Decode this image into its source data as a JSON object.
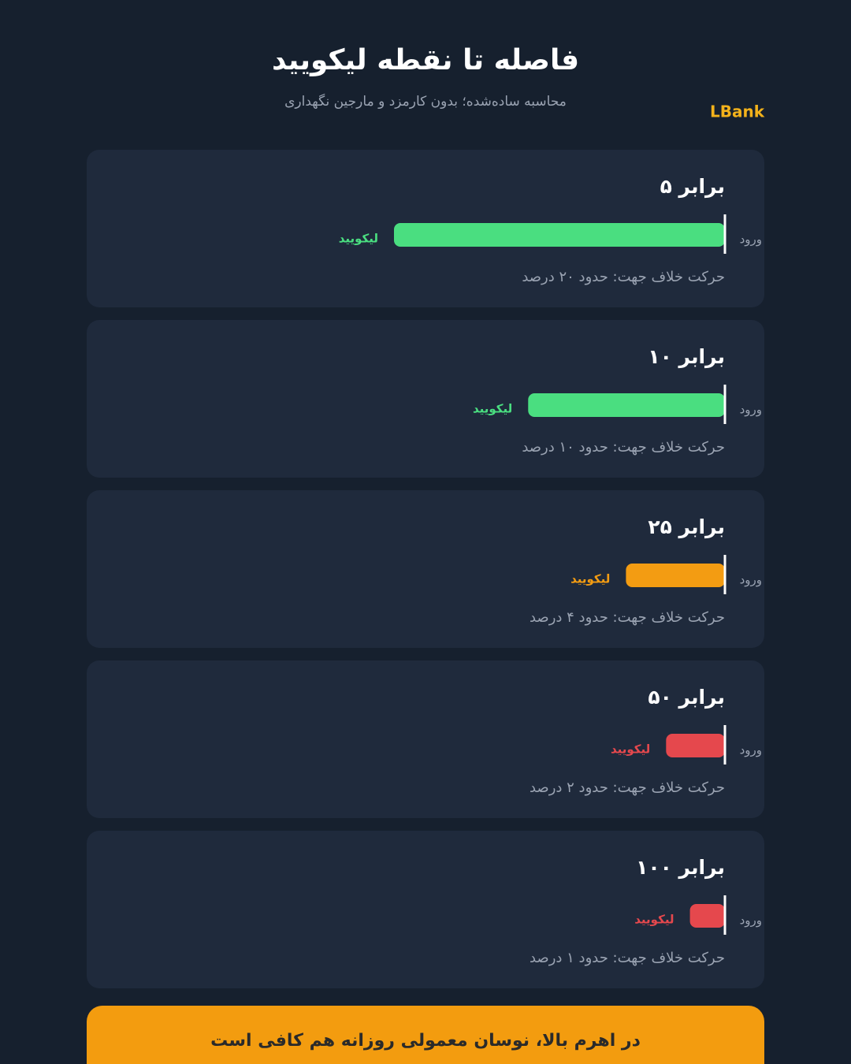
{
  "chart_data": {
    "type": "bar",
    "title": "فاصله تا نقطه لیکویید",
    "subtitle": "محاسبه ساده‌شده؛ بدون کارمزد و مارجین نگهداری",
    "categories": [
      "برابر ۵",
      "برابر ۱۰",
      "برابر ۲۵",
      "برابر ۵۰",
      "برابر ۱۰۰"
    ],
    "values": [
      20,
      10,
      4,
      2,
      1
    ],
    "value_labels": [
      "حرکت خلاف جهت: حدود ۲۰ درصد",
      "حرکت خلاف جهت: حدود ۱۰ درصد",
      "حرکت خلاف جهت: حدود ۴ درصد",
      "حرکت خلاف جهت: حدود ۲ درصد",
      "حرکت خلاف جهت: حدود ۱ درصد"
    ],
    "colors": [
      "#4ade80",
      "#4ade80",
      "#f39c12",
      "#e5484d",
      "#e5484d"
    ],
    "start_label": "ورود",
    "end_label": "لیکویید"
  },
  "brand": "LBank",
  "footer": "در اهرم بالا، نوسان معمولی روزانه هم کافی است"
}
